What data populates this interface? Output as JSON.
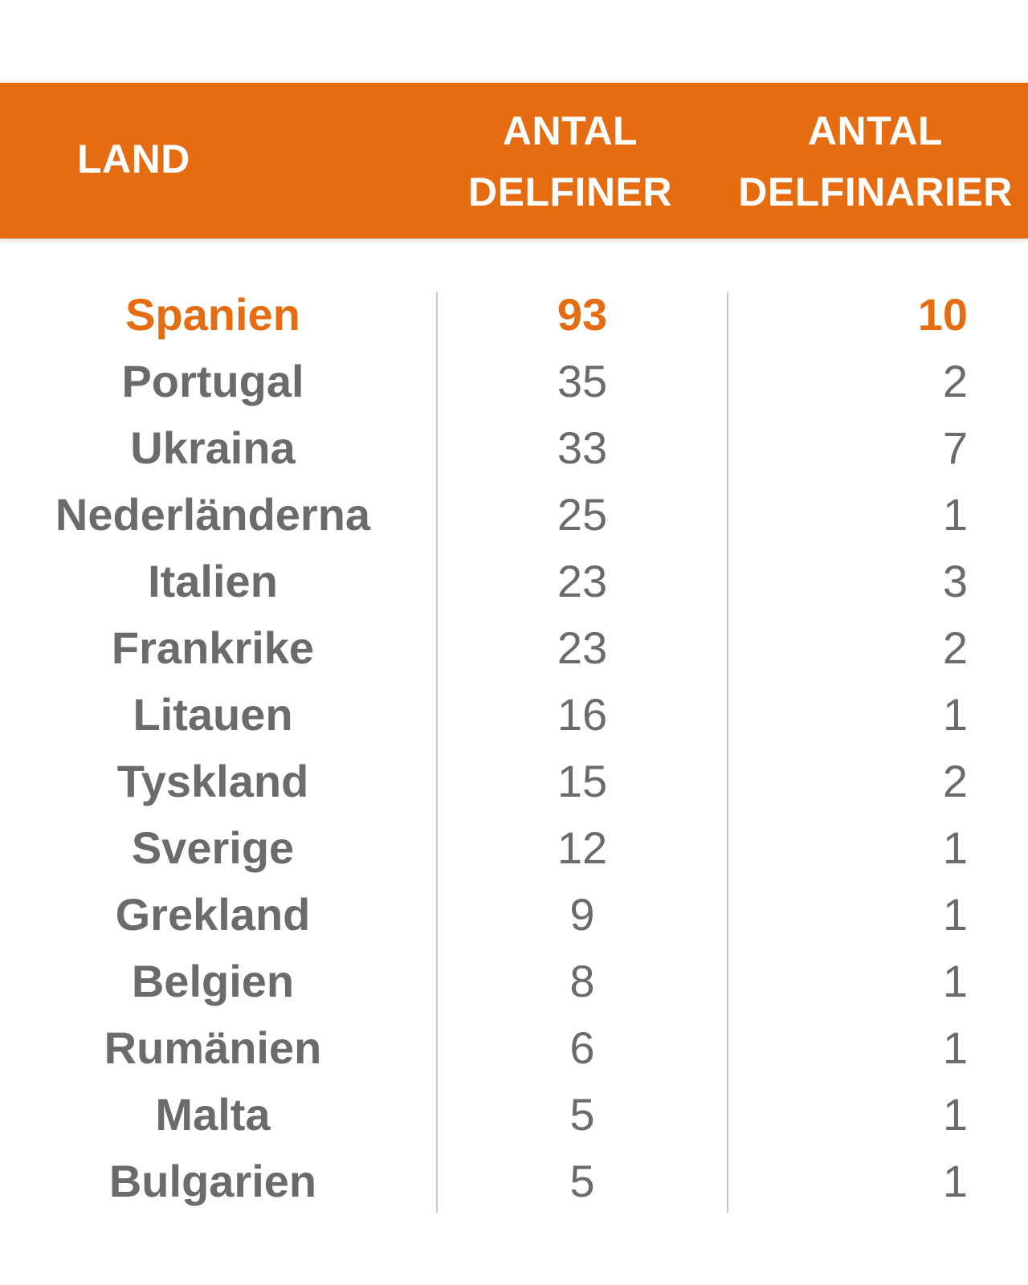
{
  "chart_data": {
    "type": "table",
    "columns": [
      {
        "key": "country",
        "label_lines": [
          "LAND"
        ]
      },
      {
        "key": "dolphins",
        "label_lines": [
          "ANTAL",
          "DELFINER"
        ]
      },
      {
        "key": "dolphinariums",
        "label_lines": [
          "ANTAL",
          "DELFINARIER"
        ]
      }
    ],
    "rows": [
      {
        "country": "Spanien",
        "dolphins": 93,
        "dolphinariums": 10,
        "highlight": true
      },
      {
        "country": "Portugal",
        "dolphins": 35,
        "dolphinariums": 2
      },
      {
        "country": "Ukraina",
        "dolphins": 33,
        "dolphinariums": 7
      },
      {
        "country": "Nederländerna",
        "dolphins": 25,
        "dolphinariums": 1
      },
      {
        "country": "Italien",
        "dolphins": 23,
        "dolphinariums": 3
      },
      {
        "country": "Frankrike",
        "dolphins": 23,
        "dolphinariums": 2
      },
      {
        "country": "Litauen",
        "dolphins": 16,
        "dolphinariums": 1
      },
      {
        "country": "Tyskland",
        "dolphins": 15,
        "dolphinariums": 2
      },
      {
        "country": "Sverige",
        "dolphins": 12,
        "dolphinariums": 1
      },
      {
        "country": "Grekland",
        "dolphins": 9,
        "dolphinariums": 1
      },
      {
        "country": "Belgien",
        "dolphins": 8,
        "dolphinariums": 1
      },
      {
        "country": "Rumänien",
        "dolphins": 6,
        "dolphinariums": 1
      },
      {
        "country": "Malta",
        "dolphins": 5,
        "dolphinariums": 1
      },
      {
        "country": "Bulgarien",
        "dolphins": 5,
        "dolphinariums": 1
      }
    ]
  },
  "colors": {
    "header_bg": "#e66c12",
    "highlight_text": "#e66c12",
    "body_text": "#6b6b6b",
    "divider": "#c8c8c8"
  }
}
